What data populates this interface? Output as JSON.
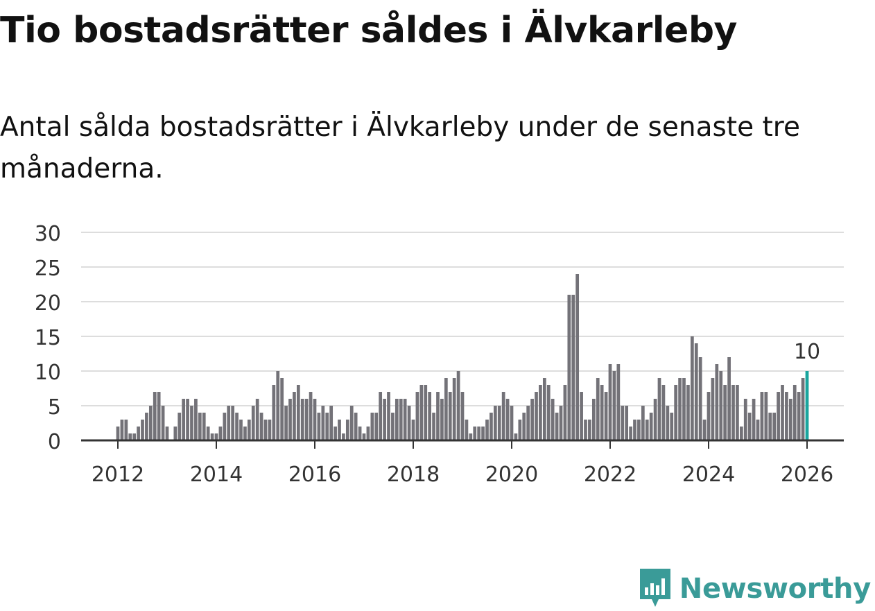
{
  "title": "Tio bostadsrätter såldes i Älvkarleby",
  "subtitle": "Antal sålda bostadsrätter i Älvkarleby under de senaste tre månaderna.",
  "brand": {
    "name": "Newsworthy",
    "icon": "newsworthy-logo-icon",
    "color": "#3a9b98"
  },
  "colors": {
    "bar": "#737278",
    "highlight": "#1aa59e",
    "grid": "#dddddd",
    "axis": "#333333"
  },
  "chart_data": {
    "type": "bar",
    "title": "Tio bostadsrätter såldes i Älvkarleby",
    "xlabel": "",
    "ylabel": "",
    "ylim": [
      0,
      30
    ],
    "yticks": [
      0,
      5,
      10,
      15,
      20,
      25,
      30
    ],
    "xticks": [
      "2012",
      "2014",
      "2016",
      "2018",
      "2020",
      "2022",
      "2024",
      "2026"
    ],
    "x_start": "2012-01",
    "x_end": "2026-01",
    "grid": true,
    "highlight_label": "10",
    "series": [
      {
        "name": "Antal sålda bostadsrätter",
        "values": [
          2,
          3,
          3,
          1,
          1,
          2,
          3,
          4,
          5,
          7,
          7,
          5,
          2,
          0,
          2,
          4,
          6,
          6,
          5,
          6,
          4,
          4,
          2,
          1,
          1,
          2,
          4,
          5,
          5,
          4,
          3,
          2,
          3,
          5,
          6,
          4,
          3,
          3,
          8,
          10,
          9,
          5,
          6,
          7,
          8,
          6,
          6,
          7,
          6,
          4,
          5,
          4,
          5,
          2,
          3,
          1,
          3,
          5,
          4,
          2,
          1,
          2,
          4,
          4,
          7,
          6,
          7,
          4,
          6,
          6,
          6,
          5,
          3,
          7,
          8,
          8,
          7,
          4,
          7,
          6,
          9,
          7,
          9,
          10,
          7,
          3,
          1,
          2,
          2,
          2,
          3,
          4,
          5,
          5,
          7,
          6,
          5,
          1,
          3,
          4,
          5,
          6,
          7,
          8,
          9,
          8,
          6,
          4,
          5,
          8,
          21,
          21,
          24,
          7,
          3,
          3,
          6,
          9,
          8,
          7,
          11,
          10,
          11,
          5,
          5,
          2,
          3,
          3,
          5,
          3,
          4,
          6,
          9,
          8,
          5,
          4,
          8,
          9,
          9,
          8,
          15,
          14,
          12,
          3,
          7,
          9,
          11,
          10,
          8,
          12,
          8,
          8,
          2,
          6,
          4,
          6,
          3,
          7,
          7,
          4,
          4,
          7,
          8,
          7,
          6,
          8,
          7,
          9,
          10
        ]
      }
    ]
  }
}
